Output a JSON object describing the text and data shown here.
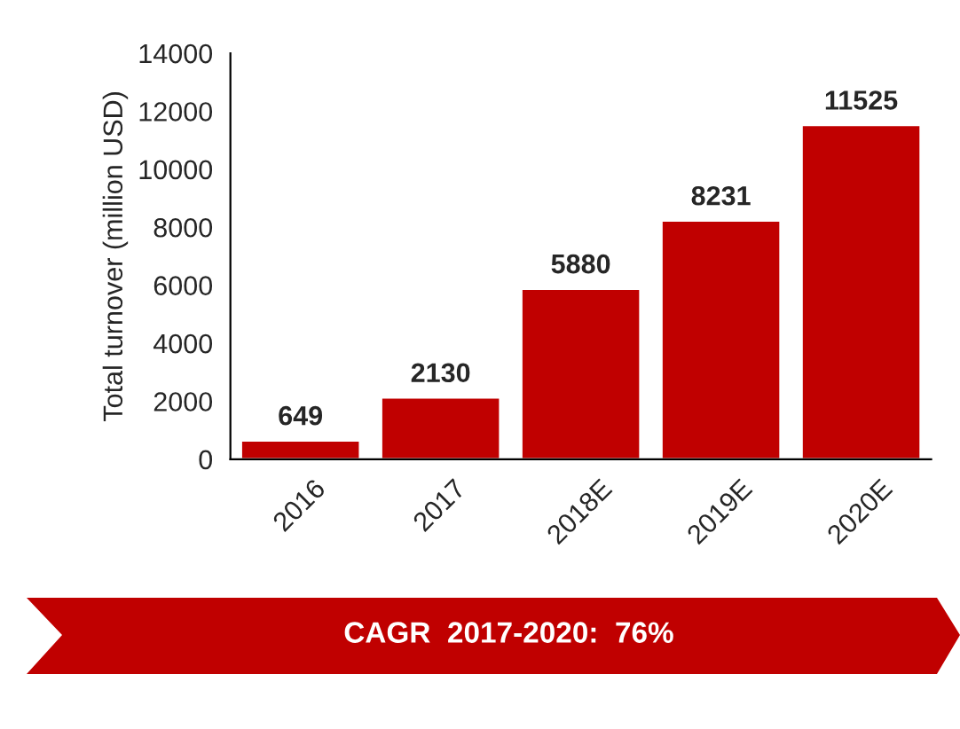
{
  "chart_data": {
    "type": "bar",
    "ylabel": "Total turnover (million USD)",
    "categories": [
      "2016",
      "2017",
      "2018E",
      "2019E",
      "2020E"
    ],
    "values": [
      649,
      2130,
      5880,
      8231,
      11525
    ],
    "color": "#c00000",
    "ylim": [
      0,
      14000
    ],
    "yticks": [
      0,
      2000,
      4000,
      6000,
      8000,
      10000,
      12000,
      14000
    ],
    "data_labels": true,
    "grid": false,
    "legend": false,
    "annotations": [
      "CAGR  2017-2020:  76%"
    ]
  }
}
